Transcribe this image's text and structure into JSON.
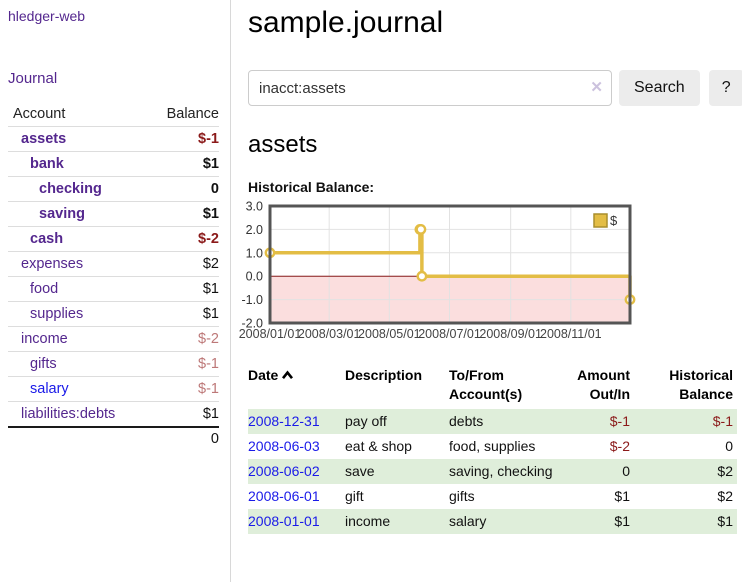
{
  "app": {
    "title": "hledger-web"
  },
  "colors": {
    "link_purple": "#54278e",
    "link_blue": "#1a1ae8",
    "negative_strong": "#8b1a1a",
    "negative_faded": "#bd7878",
    "row_stripe_green": "#dfeeda",
    "series_gold": "#e3bd45",
    "negative_region_pink": "#fbdede",
    "zero_line_red": "#8c1a1a"
  },
  "sidebar": {
    "journal_link": "Journal",
    "accounts": {
      "headers": {
        "account": "Account",
        "balance": "Balance"
      },
      "rows": [
        {
          "name": "assets",
          "balance": "$-1",
          "indent": 1,
          "style": "bold",
          "bal_style": "negstrong"
        },
        {
          "name": "bank",
          "balance": "$1",
          "indent": 2,
          "style": "bold",
          "bal_style": "strong"
        },
        {
          "name": "checking",
          "balance": "0",
          "indent": 3,
          "style": "bold",
          "bal_style": "strong"
        },
        {
          "name": "saving",
          "balance": "$1",
          "indent": 3,
          "style": "bold",
          "bal_style": "strong"
        },
        {
          "name": "cash",
          "balance": "$-2",
          "indent": 2,
          "style": "bold",
          "bal_style": "negstrong"
        },
        {
          "name": "expenses",
          "balance": "$2",
          "indent": 1,
          "style": "plain",
          "bal_style": "plain"
        },
        {
          "name": "food",
          "balance": "$1",
          "indent": 2,
          "style": "plain",
          "bal_style": "plain"
        },
        {
          "name": "supplies",
          "balance": "$1",
          "indent": 2,
          "style": "plain",
          "bal_style": "plain"
        },
        {
          "name": "income",
          "balance": "$-2",
          "indent": 1,
          "style": "plain",
          "bal_style": "negfaded"
        },
        {
          "name": "gifts",
          "balance": "$-1",
          "indent": 2,
          "style": "plain",
          "bal_style": "negfaded"
        },
        {
          "name": "salary",
          "balance": "$-1",
          "indent": 2,
          "style": "blue",
          "bal_style": "negfaded"
        },
        {
          "name": "liabilities:debts",
          "balance": "$1",
          "indent": 1,
          "style": "plain",
          "bal_style": "plain"
        }
      ],
      "total": "0"
    }
  },
  "main": {
    "title": "sample.journal",
    "search": {
      "value": "inacct:assets",
      "clear_icon": "✕",
      "search_label": "Search",
      "help_label": "?"
    },
    "account_heading": "assets",
    "chart_label": "Historical Balance:",
    "register": {
      "headers": {
        "date": "Date",
        "description": "Description",
        "accounts": "To/From Account(s)",
        "amount": "Amount Out/In",
        "balance": "Historical Balance"
      },
      "rows": [
        {
          "date": "2008-12-31",
          "description": "pay off",
          "accounts": "debts",
          "amount": "$-1",
          "amount_neg": true,
          "balance": "$-1",
          "balance_neg": true,
          "stripe": true
        },
        {
          "date": "2008-06-03",
          "description": "eat & shop",
          "accounts": "food, supplies",
          "amount": "$-2",
          "amount_neg": true,
          "balance": "0",
          "balance_neg": false,
          "stripe": false
        },
        {
          "date": "2008-06-02",
          "description": "save",
          "accounts": "saving, checking",
          "amount": "0",
          "amount_neg": false,
          "balance": "$2",
          "balance_neg": false,
          "stripe": true
        },
        {
          "date": "2008-06-01",
          "description": "gift",
          "accounts": "gifts",
          "amount": "$1",
          "amount_neg": false,
          "balance": "$2",
          "balance_neg": false,
          "stripe": false
        },
        {
          "date": "2008-01-01",
          "description": "income",
          "accounts": "salary",
          "amount": "$1",
          "amount_neg": false,
          "balance": "$1",
          "balance_neg": false,
          "stripe": true
        }
      ]
    }
  },
  "chart_data": {
    "type": "line",
    "title": "Historical Balance:",
    "step": true,
    "ylim": [
      -2.0,
      3.0
    ],
    "yticks": [
      3.0,
      2.0,
      1.0,
      0.0,
      -1.0,
      -2.0
    ],
    "x_range_days": [
      0,
      365
    ],
    "xticks": [
      {
        "day": 0,
        "label": "2008/01/01"
      },
      {
        "day": 60,
        "label": "2008/03/01"
      },
      {
        "day": 121,
        "label": "2008/05/01"
      },
      {
        "day": 182,
        "label": "2008/07/01"
      },
      {
        "day": 244,
        "label": "2008/09/01"
      },
      {
        "day": 305,
        "label": "2008/11/01"
      }
    ],
    "series": [
      {
        "name": "$",
        "color": "#e3bd45",
        "marker_fill": "#ffffff",
        "points": [
          {
            "date": "2008-01-01",
            "day": 0,
            "value": 1.0
          },
          {
            "date": "2008-06-01",
            "day": 152,
            "value": 2.0
          },
          {
            "date": "2008-06-02",
            "day": 153,
            "value": 2.0
          },
          {
            "date": "2008-06-03",
            "day": 154,
            "value": 0.0
          },
          {
            "date": "2008-12-31",
            "day": 365,
            "value": -1.0
          }
        ]
      }
    ],
    "legend": {
      "position": "top-right",
      "label": "$"
    },
    "grid": true,
    "negative_region_fill": "#fbdede",
    "zero_line_color": "#8c1a1a"
  }
}
